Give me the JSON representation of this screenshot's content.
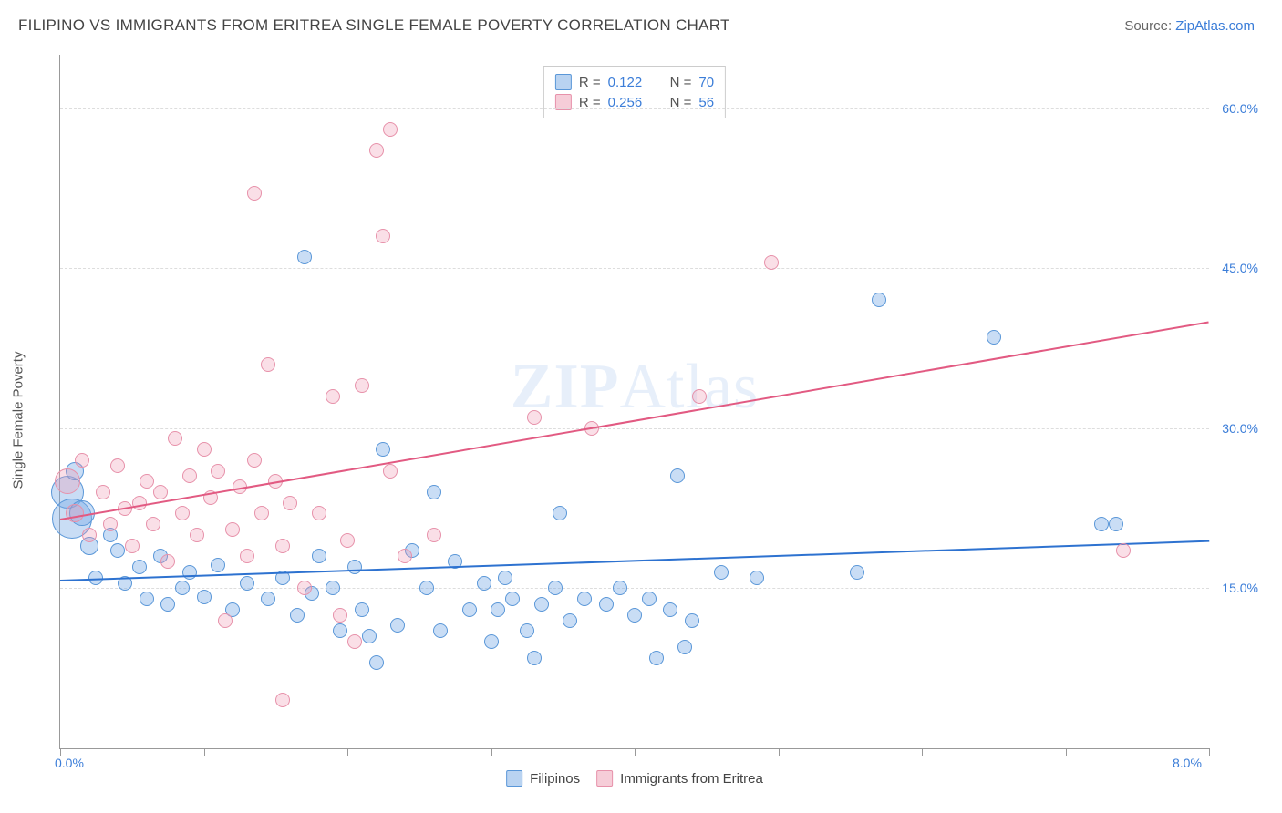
{
  "title": "FILIPINO VS IMMIGRANTS FROM ERITREA SINGLE FEMALE POVERTY CORRELATION CHART",
  "source_prefix": "Source: ",
  "source_link": "ZipAtlas.com",
  "ylabel": "Single Female Poverty",
  "watermark": {
    "bold": "ZIP",
    "rest": "Atlas"
  },
  "chart": {
    "type": "scatter",
    "xlim": [
      0.0,
      8.0
    ],
    "ylim": [
      0.0,
      65.0
    ],
    "xticks": [
      0.0,
      8.0
    ],
    "xtick_labels": [
      "0.0%",
      "8.0%"
    ],
    "vtick_positions": [
      0,
      1,
      2,
      3,
      4,
      5,
      6,
      7,
      8
    ],
    "yticks": [
      15.0,
      30.0,
      45.0,
      60.0
    ],
    "ytick_labels": [
      "15.0%",
      "30.0%",
      "45.0%",
      "60.0%"
    ],
    "background_color": "#ffffff",
    "grid_color": "#e0e0e0",
    "axis_color": "#999999",
    "tick_label_color": "#3b7dd8",
    "series": [
      {
        "name": "Filipinos",
        "color_fill": "rgba(120,170,230,0.40)",
        "color_stroke": "#5a97d8",
        "swatch_fill": "#b9d3f1",
        "swatch_border": "#5a97d8",
        "trend_color": "#2d72d0",
        "R": "0.122",
        "N": "70",
        "trend": {
          "x1": 0.0,
          "y1": 15.8,
          "x2": 8.0,
          "y2": 19.5
        },
        "points": [
          {
            "x": 0.05,
            "y": 24,
            "r": 18
          },
          {
            "x": 0.08,
            "y": 21.5,
            "r": 22
          },
          {
            "x": 0.1,
            "y": 26,
            "r": 10
          },
          {
            "x": 0.15,
            "y": 22,
            "r": 14
          },
          {
            "x": 0.2,
            "y": 19,
            "r": 10
          },
          {
            "x": 0.25,
            "y": 16,
            "r": 8
          },
          {
            "x": 0.35,
            "y": 20,
            "r": 8
          },
          {
            "x": 0.4,
            "y": 18.5,
            "r": 8
          },
          {
            "x": 0.45,
            "y": 15.5,
            "r": 8
          },
          {
            "x": 0.55,
            "y": 17,
            "r": 8
          },
          {
            "x": 0.6,
            "y": 14,
            "r": 8
          },
          {
            "x": 0.7,
            "y": 18,
            "r": 8
          },
          {
            "x": 0.75,
            "y": 13.5,
            "r": 8
          },
          {
            "x": 0.85,
            "y": 15,
            "r": 8
          },
          {
            "x": 0.9,
            "y": 16.5,
            "r": 8
          },
          {
            "x": 1.0,
            "y": 14.2,
            "r": 8
          },
          {
            "x": 1.1,
            "y": 17.2,
            "r": 8
          },
          {
            "x": 1.2,
            "y": 13.0,
            "r": 8
          },
          {
            "x": 1.3,
            "y": 15.5,
            "r": 8
          },
          {
            "x": 1.45,
            "y": 14.0,
            "r": 8
          },
          {
            "x": 1.55,
            "y": 16.0,
            "r": 8
          },
          {
            "x": 1.65,
            "y": 12.5,
            "r": 8
          },
          {
            "x": 1.75,
            "y": 14.5,
            "r": 8
          },
          {
            "x": 1.8,
            "y": 18.0,
            "r": 8
          },
          {
            "x": 1.7,
            "y": 46.0,
            "r": 8
          },
          {
            "x": 1.9,
            "y": 15.0,
            "r": 8
          },
          {
            "x": 1.95,
            "y": 11.0,
            "r": 8
          },
          {
            "x": 2.05,
            "y": 17.0,
            "r": 8
          },
          {
            "x": 2.1,
            "y": 13.0,
            "r": 8
          },
          {
            "x": 2.15,
            "y": 10.5,
            "r": 8
          },
          {
            "x": 2.2,
            "y": 8.0,
            "r": 8
          },
          {
            "x": 2.25,
            "y": 28.0,
            "r": 8
          },
          {
            "x": 2.35,
            "y": 11.5,
            "r": 8
          },
          {
            "x": 2.45,
            "y": 18.5,
            "r": 8
          },
          {
            "x": 2.55,
            "y": 15.0,
            "r": 8
          },
          {
            "x": 2.6,
            "y": 24.0,
            "r": 8
          },
          {
            "x": 2.65,
            "y": 11.0,
            "r": 8
          },
          {
            "x": 2.75,
            "y": 17.5,
            "r": 8
          },
          {
            "x": 2.85,
            "y": 13.0,
            "r": 8
          },
          {
            "x": 2.95,
            "y": 15.5,
            "r": 8
          },
          {
            "x": 3.0,
            "y": 10.0,
            "r": 8
          },
          {
            "x": 3.05,
            "y": 13.0,
            "r": 8
          },
          {
            "x": 3.1,
            "y": 16.0,
            "r": 8
          },
          {
            "x": 3.15,
            "y": 14.0,
            "r": 8
          },
          {
            "x": 3.25,
            "y": 11.0,
            "r": 8
          },
          {
            "x": 3.3,
            "y": 8.5,
            "r": 8
          },
          {
            "x": 3.35,
            "y": 13.5,
            "r": 8
          },
          {
            "x": 3.45,
            "y": 15.0,
            "r": 8
          },
          {
            "x": 3.48,
            "y": 22.0,
            "r": 8
          },
          {
            "x": 3.55,
            "y": 12.0,
            "r": 8
          },
          {
            "x": 3.65,
            "y": 14.0,
            "r": 8
          },
          {
            "x": 3.8,
            "y": 13.5,
            "r": 8
          },
          {
            "x": 3.9,
            "y": 15.0,
            "r": 8
          },
          {
            "x": 4.0,
            "y": 12.5,
            "r": 8
          },
          {
            "x": 4.1,
            "y": 14.0,
            "r": 8
          },
          {
            "x": 4.15,
            "y": 8.5,
            "r": 8
          },
          {
            "x": 4.25,
            "y": 13.0,
            "r": 8
          },
          {
            "x": 4.3,
            "y": 25.5,
            "r": 8
          },
          {
            "x": 4.35,
            "y": 9.5,
            "r": 8
          },
          {
            "x": 4.4,
            "y": 12.0,
            "r": 8
          },
          {
            "x": 4.6,
            "y": 16.5,
            "r": 8
          },
          {
            "x": 4.85,
            "y": 16.0,
            "r": 8
          },
          {
            "x": 5.55,
            "y": 16.5,
            "r": 8
          },
          {
            "x": 5.7,
            "y": 42.0,
            "r": 8
          },
          {
            "x": 6.5,
            "y": 38.5,
            "r": 8
          },
          {
            "x": 7.25,
            "y": 21.0,
            "r": 8
          },
          {
            "x": 7.35,
            "y": 21.0,
            "r": 8
          }
        ]
      },
      {
        "name": "Immigrants from Eritrea",
        "color_fill": "rgba(240,150,175,0.30)",
        "color_stroke": "#e791aa",
        "swatch_fill": "#f6cdd8",
        "swatch_border": "#e791aa",
        "trend_color": "#e25a82",
        "R": "0.256",
        "N": "56",
        "trend": {
          "x1": 0.0,
          "y1": 21.5,
          "x2": 8.0,
          "y2": 40.0
        },
        "points": [
          {
            "x": 0.05,
            "y": 25,
            "r": 14
          },
          {
            "x": 0.1,
            "y": 22,
            "r": 10
          },
          {
            "x": 0.15,
            "y": 27,
            "r": 8
          },
          {
            "x": 0.2,
            "y": 20,
            "r": 8
          },
          {
            "x": 0.3,
            "y": 24,
            "r": 8
          },
          {
            "x": 0.35,
            "y": 21,
            "r": 8
          },
          {
            "x": 0.4,
            "y": 26.5,
            "r": 8
          },
          {
            "x": 0.45,
            "y": 22.5,
            "r": 8
          },
          {
            "x": 0.5,
            "y": 19,
            "r": 8
          },
          {
            "x": 0.55,
            "y": 23,
            "r": 8
          },
          {
            "x": 0.6,
            "y": 25,
            "r": 8
          },
          {
            "x": 0.65,
            "y": 21,
            "r": 8
          },
          {
            "x": 0.7,
            "y": 24,
            "r": 8
          },
          {
            "x": 0.75,
            "y": 17.5,
            "r": 8
          },
          {
            "x": 0.8,
            "y": 29,
            "r": 8
          },
          {
            "x": 0.85,
            "y": 22,
            "r": 8
          },
          {
            "x": 0.9,
            "y": 25.5,
            "r": 8
          },
          {
            "x": 0.95,
            "y": 20,
            "r": 8
          },
          {
            "x": 1.0,
            "y": 28,
            "r": 8
          },
          {
            "x": 1.05,
            "y": 23.5,
            "r": 8
          },
          {
            "x": 1.1,
            "y": 26,
            "r": 8
          },
          {
            "x": 1.15,
            "y": 12,
            "r": 8
          },
          {
            "x": 1.2,
            "y": 20.5,
            "r": 8
          },
          {
            "x": 1.25,
            "y": 24.5,
            "r": 8
          },
          {
            "x": 1.3,
            "y": 18,
            "r": 8
          },
          {
            "x": 1.35,
            "y": 27,
            "r": 8
          },
          {
            "x": 1.35,
            "y": 52,
            "r": 8
          },
          {
            "x": 1.4,
            "y": 22,
            "r": 8
          },
          {
            "x": 1.45,
            "y": 36,
            "r": 8
          },
          {
            "x": 1.5,
            "y": 25,
            "r": 8
          },
          {
            "x": 1.55,
            "y": 19,
            "r": 8
          },
          {
            "x": 1.6,
            "y": 23,
            "r": 8
          },
          {
            "x": 1.55,
            "y": 4.5,
            "r": 8
          },
          {
            "x": 1.7,
            "y": 15,
            "r": 8
          },
          {
            "x": 1.8,
            "y": 22,
            "r": 8
          },
          {
            "x": 1.9,
            "y": 33,
            "r": 8
          },
          {
            "x": 1.95,
            "y": 12.5,
            "r": 8
          },
          {
            "x": 2.0,
            "y": 19.5,
            "r": 8
          },
          {
            "x": 2.05,
            "y": 10,
            "r": 8
          },
          {
            "x": 2.1,
            "y": 34,
            "r": 8
          },
          {
            "x": 2.2,
            "y": 56,
            "r": 8
          },
          {
            "x": 2.25,
            "y": 48,
            "r": 8
          },
          {
            "x": 2.3,
            "y": 26,
            "r": 8
          },
          {
            "x": 2.3,
            "y": 58,
            "r": 8
          },
          {
            "x": 2.4,
            "y": 18,
            "r": 8
          },
          {
            "x": 2.6,
            "y": 20,
            "r": 8
          },
          {
            "x": 3.3,
            "y": 31,
            "r": 8
          },
          {
            "x": 3.7,
            "y": 30,
            "r": 8
          },
          {
            "x": 4.45,
            "y": 33,
            "r": 8
          },
          {
            "x": 4.95,
            "y": 45.5,
            "r": 8
          },
          {
            "x": 7.4,
            "y": 18.5,
            "r": 8
          }
        ]
      }
    ]
  },
  "legend_top": {
    "r_label": "R =",
    "n_label": "N ="
  },
  "legend_bottom_labels": [
    "Filipinos",
    "Immigrants from Eritrea"
  ]
}
